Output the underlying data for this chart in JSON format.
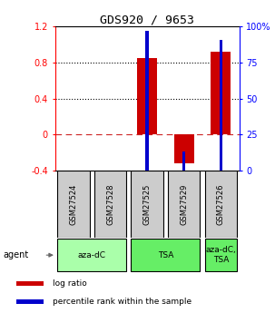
{
  "title": "GDS920 / 9653",
  "samples": [
    "GSM27524",
    "GSM27528",
    "GSM27525",
    "GSM27529",
    "GSM27526"
  ],
  "log_ratios": [
    0.0,
    0.0,
    0.855,
    -0.32,
    0.92
  ],
  "percentile_ranks": [
    null,
    null,
    97.0,
    13.0,
    91.0
  ],
  "agent_spans": [
    {
      "start": 0,
      "end": 1,
      "label": "aza-dC",
      "color": "#aaffaa"
    },
    {
      "start": 2,
      "end": 3,
      "label": "TSA",
      "color": "#66ee66"
    },
    {
      "start": 4,
      "end": 4,
      "label": "aza-dC,\nTSA",
      "color": "#66ee66"
    }
  ],
  "ylim_left": [
    -0.4,
    1.2
  ],
  "ylim_right": [
    0,
    100
  ],
  "yticks_left": [
    -0.4,
    0.0,
    0.4,
    0.8,
    1.2
  ],
  "yticks_right": [
    0,
    25,
    50,
    75,
    100
  ],
  "ytick_labels_left": [
    "-0.4",
    "0",
    "0.4",
    "0.8",
    "1.2"
  ],
  "ytick_labels_right": [
    "0",
    "25",
    "50",
    "75",
    "100%"
  ],
  "hlines_black": [
    0.4,
    0.8
  ],
  "hline_red": 0.0,
  "bar_color_red": "#cc0000",
  "bar_color_blue": "#0000cc",
  "red_bar_width": 0.55,
  "blue_bar_width": 0.08,
  "sample_box_color": "#cccccc",
  "legend_items": [
    {
      "color": "#cc0000",
      "label": "log ratio"
    },
    {
      "color": "#0000cc",
      "label": "percentile rank within the sample"
    }
  ]
}
